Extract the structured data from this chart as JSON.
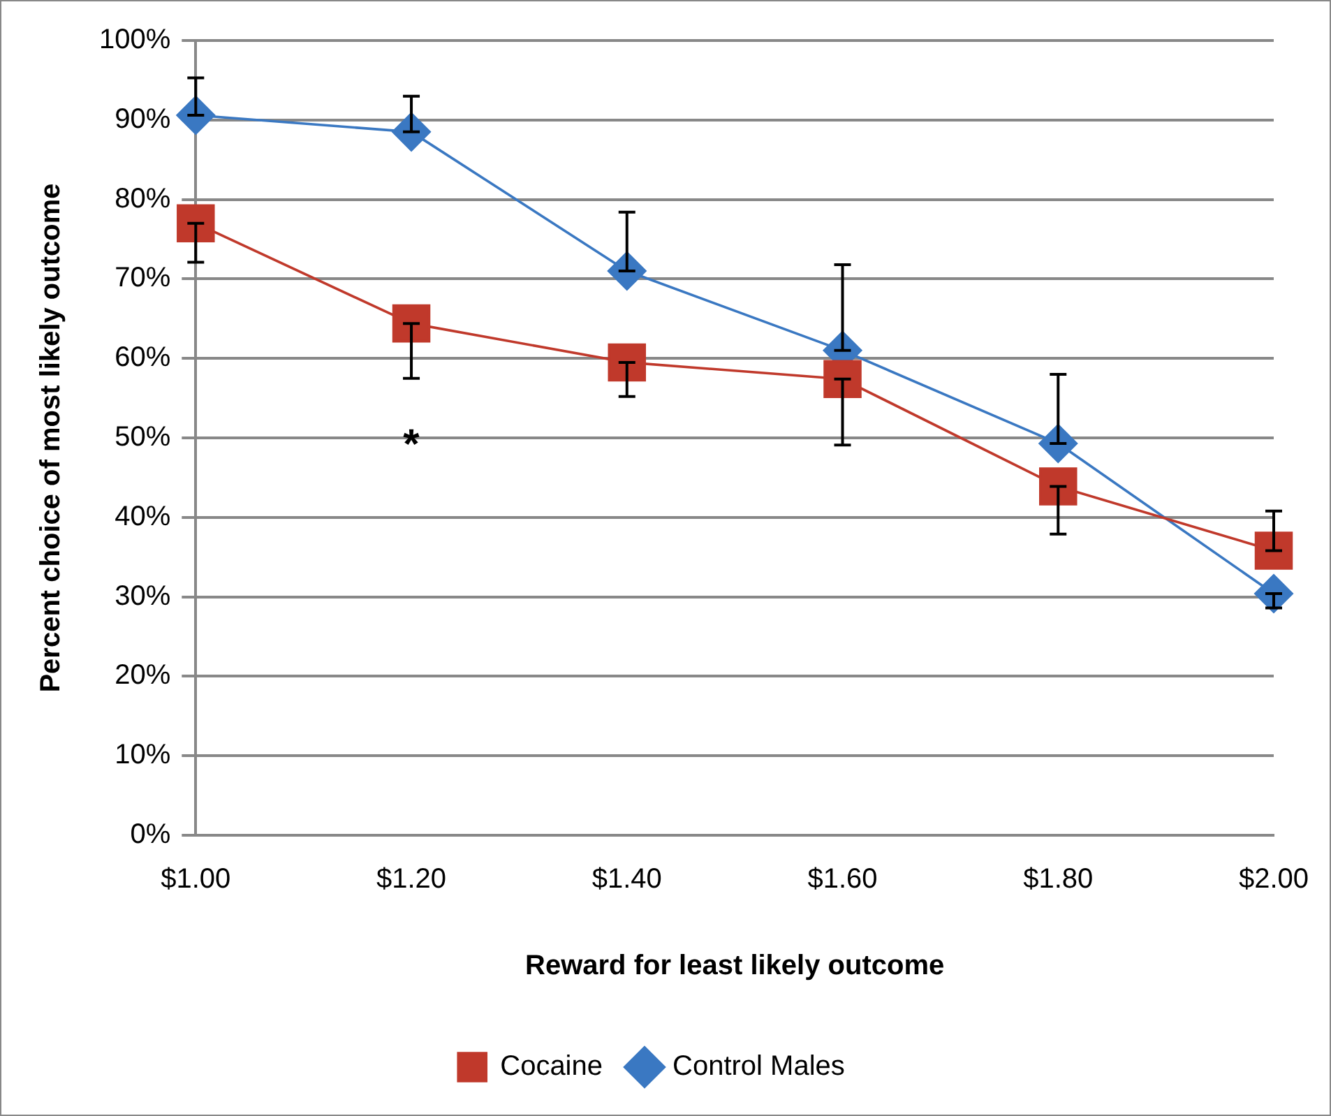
{
  "chart_data": {
    "type": "line",
    "xlabel": "Reward for least likely outcome",
    "ylabel": "Percent choice of most likely outcome",
    "categories": [
      "$1.00",
      "$1.20",
      "$1.40",
      "$1.60",
      "$1.80",
      "$2.00"
    ],
    "series": [
      {
        "name": "Cocaine",
        "color": "#c0392b",
        "marker": "square",
        "values": [
          77,
          64.4,
          59.5,
          57.4,
          43.9,
          35.8
        ],
        "errors": [
          [
            72.1,
            77
          ],
          [
            57.5,
            64.4
          ],
          [
            55.2,
            59.5
          ],
          [
            49.1,
            57.4
          ],
          [
            37.9,
            43.9
          ],
          [
            35.8,
            40.8
          ]
        ]
      },
      {
        "name": "Control Males",
        "color": "#3a78c2",
        "marker": "diamond",
        "values": [
          90.6,
          88.5,
          71,
          61,
          49.3,
          30.4
        ],
        "errors": [
          [
            90.6,
            95.3
          ],
          [
            88.5,
            93
          ],
          [
            71,
            78.4
          ],
          [
            61,
            71.8
          ],
          [
            49.3,
            58
          ],
          [
            28.6,
            30.4
          ]
        ]
      }
    ],
    "ylim": [
      0,
      100
    ],
    "yticks": [
      {
        "value": 0,
        "label": "0%"
      },
      {
        "value": 10,
        "label": "10%"
      },
      {
        "value": 20,
        "label": "20%"
      },
      {
        "value": 30,
        "label": "30%"
      },
      {
        "value": 40,
        "label": "40%"
      },
      {
        "value": 50,
        "label": "50%"
      },
      {
        "value": 60,
        "label": "60%"
      },
      {
        "value": 70,
        "label": "70%"
      },
      {
        "value": 80,
        "label": "80%"
      },
      {
        "value": 90,
        "label": "90%"
      },
      {
        "value": 100,
        "label": "100%"
      }
    ],
    "annotations": [
      "*"
    ],
    "grid": "y",
    "legend": "bottom",
    "line_style": "solid"
  }
}
